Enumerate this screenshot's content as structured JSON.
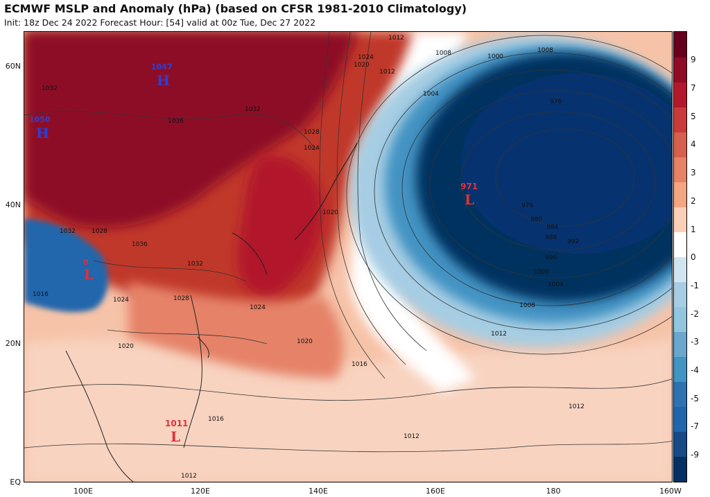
{
  "header": {
    "title": "ECMWF MSLP and Anomaly (hPa) (based on CFSR 1981-2010 Climatology)",
    "subtitle": "Init: 18z Dec 24 2022   Forecast Hour: [54]   valid at 00z Tue, Dec 27 2022"
  },
  "axes": {
    "lat_labels": [
      "60N",
      "40N",
      "20N",
      "EQ"
    ],
    "lon_labels": [
      "100E",
      "120E",
      "140E",
      "160E",
      "180",
      "160W"
    ]
  },
  "pressure_centers": [
    {
      "value": "1047",
      "letter": "H",
      "type": "high"
    },
    {
      "value": "1050",
      "letter": "H",
      "type": "high"
    },
    {
      "value": "0",
      "letter": "L",
      "type": "low"
    },
    {
      "value": "971",
      "letter": "L",
      "type": "low"
    },
    {
      "value": "1011",
      "letter": "L",
      "type": "low"
    }
  ],
  "contour_labels": [
    "1032",
    "1036",
    "1032",
    "1028",
    "1024",
    "1020",
    "1032",
    "1028",
    "1024",
    "1020",
    "1016",
    "1012",
    "1008",
    "1004",
    "1000",
    "976",
    "976",
    "980",
    "984",
    "988",
    "992",
    "996",
    "1000",
    "1004",
    "1008",
    "1012",
    "1012",
    "1012",
    "1012",
    "1016",
    "1020",
    "1024",
    "1028",
    "1036",
    "1032",
    "1016",
    "1020",
    "1024",
    "1008",
    "1012"
  ],
  "colorbar": {
    "labels": [
      "9",
      "7",
      "5",
      "4",
      "3",
      "2",
      "1",
      "0",
      "-1",
      "-2",
      "-3",
      "-4",
      "-5",
      "-7",
      "-9"
    ],
    "colors": [
      "#67001f",
      "#8e0c25",
      "#b2182b",
      "#c93a3b",
      "#d6604d",
      "#e58268",
      "#f4a582",
      "#fbd0b9",
      "#ffffff",
      "#d1e5f0",
      "#a6cde3",
      "#92c5de",
      "#6aa6cd",
      "#4393c3",
      "#2f72b1",
      "#2166ac",
      "#174a86",
      "#053061"
    ]
  },
  "colors": {
    "high_label": "#2b3fd6",
    "low_label": "#e0303a",
    "ocean_base": "#f6c3a8"
  }
}
